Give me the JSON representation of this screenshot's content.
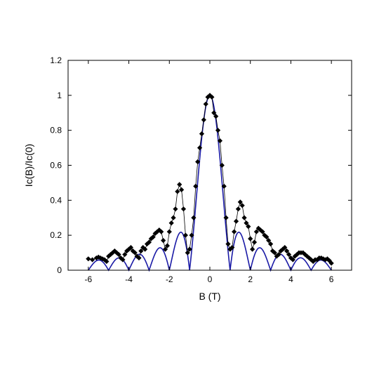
{
  "chart_data": {
    "type": "scatter",
    "xlabel": "B (T)",
    "ylabel": "Ic(B)/Ic(0)",
    "xlim": [
      -7,
      7
    ],
    "ylim": [
      0,
      1.2
    ],
    "x_ticks": [
      -6,
      -4,
      -2,
      0,
      2,
      4,
      6
    ],
    "y_ticks": [
      0,
      0.2,
      0.4,
      0.6,
      0.8,
      1,
      1.2
    ],
    "y_tick_labels": [
      "0",
      "0.2",
      "0.4",
      "0.6",
      "0.8",
      "1",
      "1.2"
    ],
    "grid": false,
    "legend": "none",
    "series": [
      {
        "style": "line+diamond-markers",
        "color": "#000000",
        "x": [
          -6.0,
          -5.8,
          -5.6,
          -5.5,
          -5.4,
          -5.3,
          -5.2,
          -5.1,
          -5.0,
          -4.9,
          -4.8,
          -4.7,
          -4.6,
          -4.5,
          -4.4,
          -4.3,
          -4.2,
          -4.1,
          -4.0,
          -3.9,
          -3.8,
          -3.7,
          -3.6,
          -3.5,
          -3.4,
          -3.3,
          -3.2,
          -3.1,
          -3.0,
          -2.9,
          -2.8,
          -2.7,
          -2.6,
          -2.5,
          -2.4,
          -2.3,
          -2.2,
          -2.1,
          -2.0,
          -1.9,
          -1.8,
          -1.7,
          -1.6,
          -1.5,
          -1.4,
          -1.3,
          -1.2,
          -1.1,
          -1.0,
          -0.9,
          -0.8,
          -0.7,
          -0.6,
          -0.5,
          -0.4,
          -0.3,
          -0.2,
          -0.1,
          0.0,
          0.1,
          0.2,
          0.3,
          0.4,
          0.5,
          0.6,
          0.7,
          0.8,
          0.9,
          1.0,
          1.1,
          1.2,
          1.3,
          1.4,
          1.5,
          1.6,
          1.7,
          1.8,
          1.9,
          2.0,
          2.1,
          2.2,
          2.3,
          2.4,
          2.5,
          2.6,
          2.7,
          2.8,
          2.9,
          3.0,
          3.1,
          3.2,
          3.3,
          3.4,
          3.5,
          3.6,
          3.7,
          3.8,
          3.9,
          4.0,
          4.1,
          4.2,
          4.3,
          4.4,
          4.5,
          4.6,
          4.7,
          4.8,
          4.9,
          5.0,
          5.1,
          5.2,
          5.3,
          5.4,
          5.5,
          5.6,
          5.7,
          5.8,
          5.9,
          6.0
        ],
        "y": [
          0.065,
          0.06,
          0.07,
          0.075,
          0.07,
          0.065,
          0.06,
          0.05,
          0.08,
          0.09,
          0.1,
          0.11,
          0.1,
          0.09,
          0.07,
          0.06,
          0.09,
          0.11,
          0.12,
          0.13,
          0.11,
          0.1,
          0.08,
          0.07,
          0.11,
          0.13,
          0.12,
          0.15,
          0.16,
          0.18,
          0.19,
          0.21,
          0.22,
          0.23,
          0.22,
          0.17,
          0.12,
          0.14,
          0.22,
          0.27,
          0.3,
          0.35,
          0.45,
          0.49,
          0.46,
          0.35,
          0.2,
          0.1,
          0.12,
          0.2,
          0.3,
          0.48,
          0.62,
          0.7,
          0.78,
          0.86,
          0.95,
          0.99,
          1.0,
          0.99,
          0.9,
          0.88,
          0.8,
          0.74,
          0.6,
          0.48,
          0.3,
          0.15,
          0.12,
          0.13,
          0.22,
          0.28,
          0.35,
          0.39,
          0.37,
          0.3,
          0.27,
          0.25,
          0.18,
          0.12,
          0.16,
          0.22,
          0.24,
          0.23,
          0.22,
          0.2,
          0.19,
          0.17,
          0.15,
          0.11,
          0.1,
          0.08,
          0.09,
          0.11,
          0.12,
          0.13,
          0.11,
          0.09,
          0.07,
          0.06,
          0.08,
          0.09,
          0.1,
          0.1,
          0.1,
          0.09,
          0.08,
          0.07,
          0.06,
          0.05,
          0.06,
          0.06,
          0.07,
          0.07,
          0.065,
          0.06,
          0.065,
          0.055,
          0.04
        ]
      },
      {
        "style": "line",
        "color": "#1a1aa6",
        "function": "|sin(pi*B)/(pi*B)|",
        "x_range": [
          -6,
          6
        ]
      }
    ]
  }
}
